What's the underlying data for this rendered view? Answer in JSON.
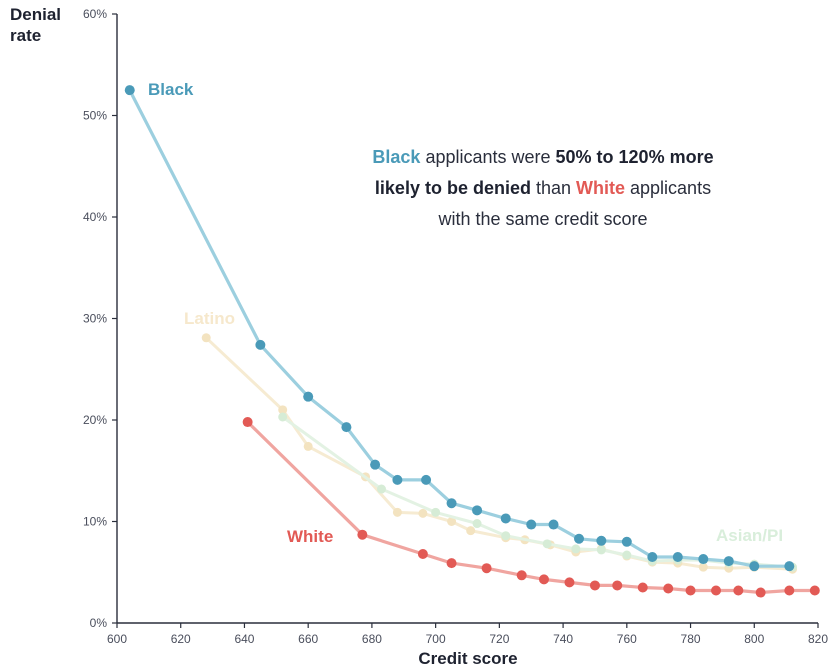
{
  "chart_data": {
    "type": "line",
    "xlabel": "Credit score",
    "ylabel": "Denial rate",
    "xlim": [
      600,
      820
    ],
    "ylim": [
      0,
      60
    ],
    "x_ticks": [
      "600",
      "620",
      "640",
      "660",
      "680",
      "700",
      "720",
      "740",
      "760",
      "780",
      "800",
      "820"
    ],
    "y_ticks": [
      "0%",
      "10%",
      "20%",
      "30%",
      "40%",
      "50%",
      "60%"
    ],
    "annotation": {
      "part1": "Black",
      "part2": " applicants were ",
      "part3": "50% to 120% more likely to be denied",
      "part4": " than ",
      "part5": "White",
      "part6": " applicants with the same credit score"
    },
    "series": [
      {
        "name": "Latino",
        "color": "#f3e3c0",
        "x": [
          628,
          652,
          660,
          678,
          688,
          696,
          705,
          711,
          722,
          728,
          736,
          744,
          752,
          760,
          768,
          776,
          784,
          792,
          800,
          812
        ],
        "y": [
          28.1,
          21.0,
          17.4,
          14.4,
          10.9,
          10.8,
          10.0,
          9.1,
          8.4,
          8.2,
          7.7,
          7.0,
          7.3,
          6.6,
          6.0,
          5.9,
          5.5,
          5.4,
          5.5,
          5.3
        ]
      },
      {
        "name": "Asian/PI",
        "color": "#d6ecd6",
        "x": [
          652,
          683,
          700,
          713,
          722,
          735,
          744,
          752,
          760,
          768,
          776,
          784,
          792,
          800,
          812
        ],
        "y": [
          20.3,
          13.2,
          10.9,
          9.8,
          8.6,
          7.8,
          7.3,
          7.2,
          6.7,
          6.1,
          6.2,
          6.2,
          5.9,
          5.8,
          5.5
        ]
      },
      {
        "name": "White",
        "color": "#e25a55",
        "x": [
          641,
          677,
          696,
          705,
          716,
          727,
          734,
          742,
          750,
          757,
          765,
          773,
          780,
          788,
          795,
          802,
          811,
          819
        ],
        "y": [
          19.8,
          8.7,
          6.8,
          5.9,
          5.4,
          4.7,
          4.3,
          4.0,
          3.7,
          3.7,
          3.5,
          3.4,
          3.2,
          3.2,
          3.2,
          3.0,
          3.2,
          3.2
        ]
      },
      {
        "name": "Black",
        "color": "#4a9ab8",
        "x": [
          604,
          645,
          660,
          672,
          681,
          688,
          697,
          705,
          713,
          722,
          730,
          737,
          745,
          752,
          760,
          768,
          776,
          784,
          792,
          800,
          811
        ],
        "y": [
          52.5,
          27.4,
          22.3,
          19.3,
          15.6,
          14.1,
          14.1,
          11.8,
          11.1,
          10.3,
          9.7,
          9.7,
          8.3,
          8.1,
          8.0,
          6.5,
          6.5,
          6.3,
          6.1,
          5.6,
          5.6
        ]
      }
    ]
  }
}
